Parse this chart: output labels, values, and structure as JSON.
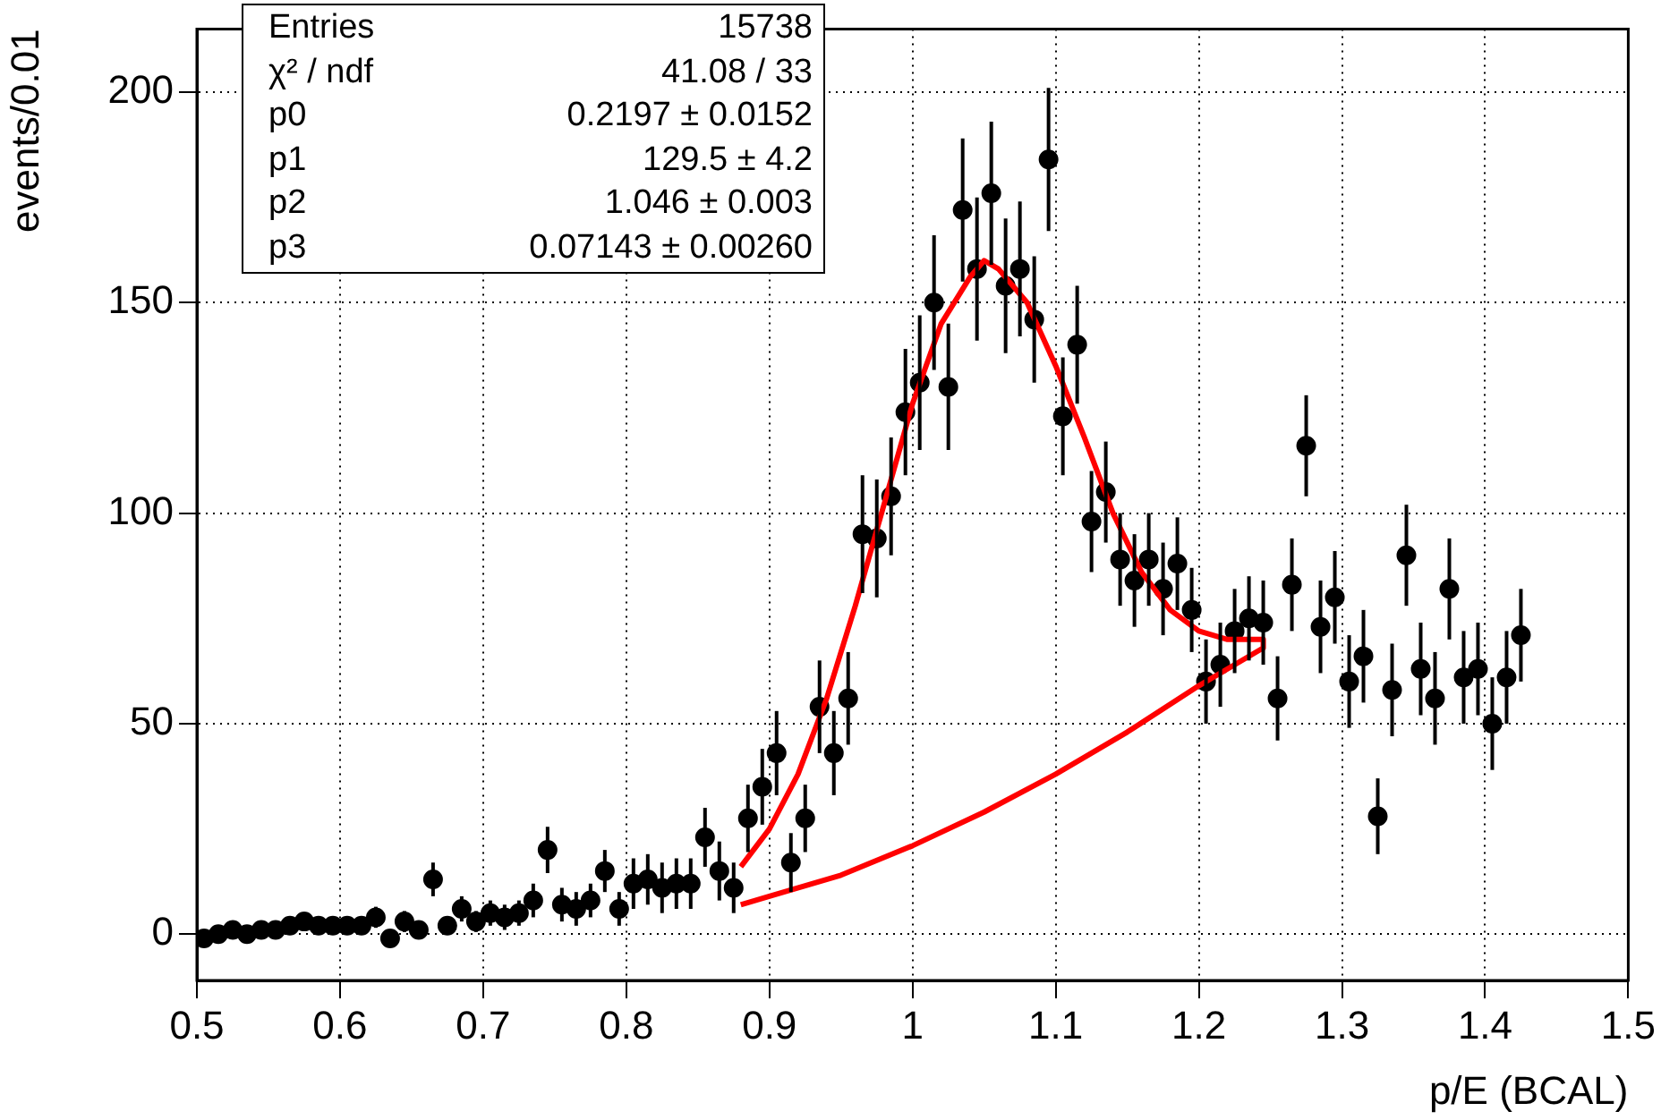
{
  "chart_data": {
    "type": "scatter",
    "xlabel": "p/E (BCAL)",
    "ylabel": "events/0.01",
    "xlim": [
      0.5,
      1.5
    ],
    "xticks": [
      0.5,
      0.6,
      0.7,
      0.8,
      0.9,
      1,
      1.1,
      1.2,
      1.3,
      1.4,
      1.5
    ],
    "ylim": [
      -11,
      215
    ],
    "yticks": [
      0,
      50,
      100,
      150,
      200
    ],
    "grid": true,
    "legend": false,
    "marker": "circle",
    "annotations": [
      "Entries",
      "15738",
      "χ² / ndf",
      "41.08 / 33",
      "p0",
      "0.2197 ± 0.0152",
      "p1",
      "129.5 ± 4.2",
      "p2",
      "1.046 ± 0.003",
      "p3",
      "0.07143 ± 0.00260"
    ],
    "series": [
      {
        "type": "scatter",
        "color": "#000000",
        "x": [
          0.505,
          0.515,
          0.525,
          0.535,
          0.545,
          0.555,
          0.565,
          0.575,
          0.585,
          0.595,
          0.605,
          0.615,
          0.625,
          0.635,
          0.645,
          0.655,
          0.665,
          0.675,
          0.685,
          0.695,
          0.705,
          0.715,
          0.725,
          0.735,
          0.745,
          0.755,
          0.765,
          0.775,
          0.785,
          0.795,
          0.805,
          0.815,
          0.825,
          0.835,
          0.845,
          0.855,
          0.865,
          0.875,
          0.885,
          0.895,
          0.905,
          0.915,
          0.925,
          0.935,
          0.945,
          0.955,
          0.965,
          0.975,
          0.985,
          0.995,
          1.005,
          1.015,
          1.025,
          1.035,
          1.045,
          1.055,
          1.065,
          1.075,
          1.085,
          1.095,
          1.105,
          1.115,
          1.125,
          1.135,
          1.145,
          1.155,
          1.165,
          1.175,
          1.185,
          1.195,
          1.205,
          1.215,
          1.225,
          1.235,
          1.245,
          1.255,
          1.265,
          1.275,
          1.285,
          1.295,
          1.305,
          1.315,
          1.325,
          1.335,
          1.345,
          1.355,
          1.365,
          1.375,
          1.385,
          1.395,
          1.405,
          1.415,
          1.425
        ],
        "values": [
          -1,
          0,
          1,
          0,
          1,
          1,
          2,
          3,
          2,
          2,
          2,
          2,
          4,
          -1,
          3,
          1,
          13,
          2,
          6,
          3,
          5,
          4,
          5,
          8,
          20,
          7,
          6,
          8,
          15,
          6,
          12,
          13,
          11,
          12,
          12,
          23,
          15,
          11,
          27.5,
          35,
          43,
          17,
          27.5,
          54,
          43,
          56,
          95,
          94,
          104,
          124,
          131,
          150,
          130,
          172,
          158,
          176,
          154,
          158,
          146,
          184,
          123,
          140,
          98,
          105,
          89,
          84,
          89,
          82,
          88,
          77,
          60,
          64,
          72,
          75,
          74,
          56,
          83,
          116,
          73,
          80,
          60,
          66,
          28,
          58,
          90,
          63,
          56,
          82,
          61,
          63,
          50,
          61,
          71
        ],
        "errors": [
          1.5,
          1.5,
          1.5,
          1.5,
          1.5,
          1.5,
          2,
          2,
          2,
          2,
          2,
          2,
          2.5,
          1.5,
          2.5,
          2,
          4,
          2,
          3,
          2.5,
          3,
          3,
          3,
          4,
          5.5,
          4,
          4,
          4,
          5,
          4,
          6,
          6,
          6,
          6,
          6,
          7,
          7,
          6,
          8,
          9,
          10,
          7,
          8,
          11,
          10,
          11,
          14,
          14,
          14,
          15,
          16,
          16,
          15,
          17,
          17,
          17,
          16,
          16,
          15,
          17,
          14,
          14,
          12,
          12,
          11,
          11,
          11,
          11,
          11,
          10,
          10,
          10,
          10,
          10,
          10,
          10,
          11,
          12,
          11,
          11,
          11,
          11,
          9,
          11,
          12,
          11,
          11,
          12,
          11,
          11,
          11,
          11,
          11
        ]
      },
      {
        "type": "line",
        "color": "#ff0000",
        "marker": "none",
        "x": [
          0.88,
          0.9,
          0.92,
          0.94,
          0.96,
          0.98,
          1.0,
          1.02,
          1.04,
          1.05,
          1.06,
          1.08,
          1.1,
          1.12,
          1.14,
          1.16,
          1.18,
          1.2,
          1.22,
          1.245,
          1.245,
          1.2,
          1.15,
          1.1,
          1.05,
          1.0,
          0.95,
          0.9,
          0.88
        ],
        "values": [
          16,
          25,
          38,
          56,
          78,
          102,
          126,
          145,
          156,
          160,
          158,
          150,
          135,
          118,
          100,
          86,
          77,
          72,
          70,
          70,
          68,
          59,
          48,
          38,
          29,
          21,
          14,
          9,
          7
        ]
      }
    ]
  }
}
